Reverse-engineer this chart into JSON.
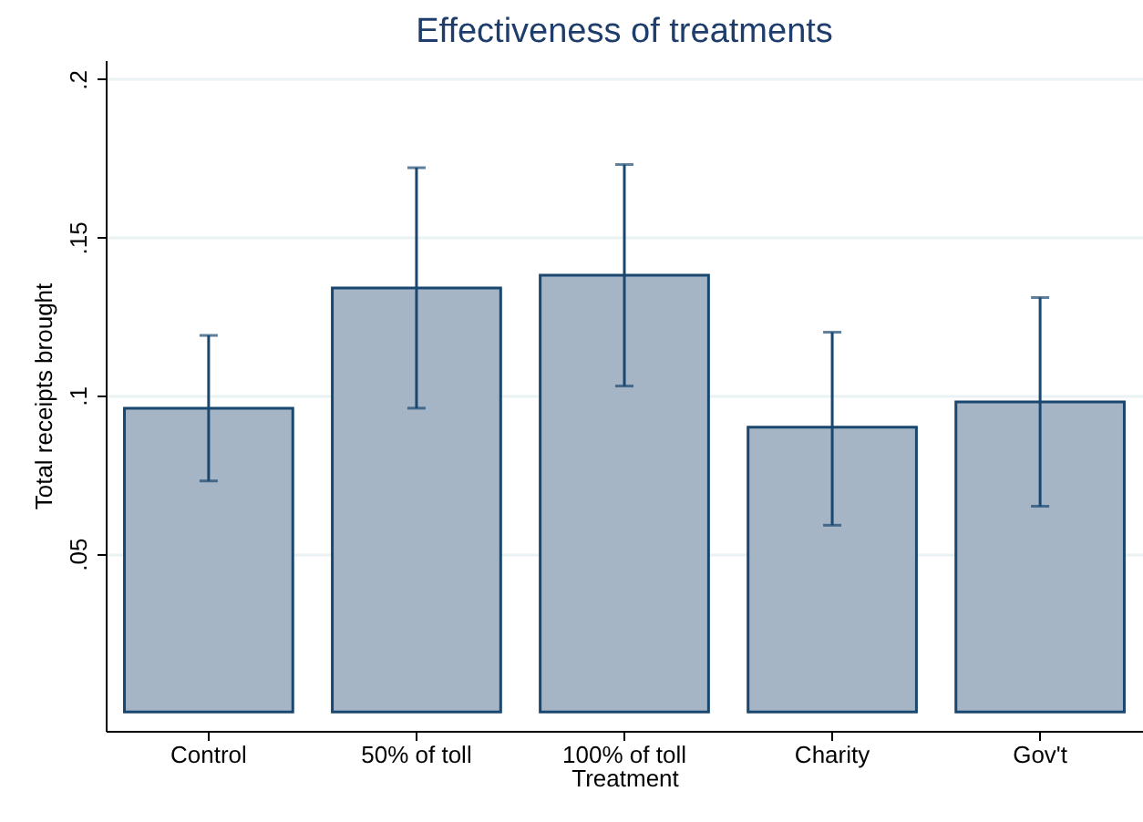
{
  "chart_data": {
    "type": "bar",
    "title": "Effectiveness of treatments",
    "xlabel": "Treatment",
    "ylabel": "Total receipts brought",
    "categories": [
      "Control",
      "50% of toll",
      "100% of toll",
      "Charity",
      "Gov't"
    ],
    "values": [
      0.096,
      0.134,
      0.138,
      0.09,
      0.098
    ],
    "errors": [
      [
        0.073,
        0.119
      ],
      [
        0.096,
        0.172
      ],
      [
        0.103,
        0.173
      ],
      [
        0.059,
        0.12
      ],
      [
        0.065,
        0.131
      ]
    ],
    "color": "#a5b5c6",
    "ylim": [
      -0.006,
      0.206
    ],
    "yticks": [
      {
        "value": 0.05,
        "label": ".05"
      },
      {
        "value": 0.1,
        "label": ".1"
      },
      {
        "value": 0.15,
        "label": ".15"
      },
      {
        "value": 0.2,
        "label": ".2"
      }
    ],
    "grid": "y"
  }
}
